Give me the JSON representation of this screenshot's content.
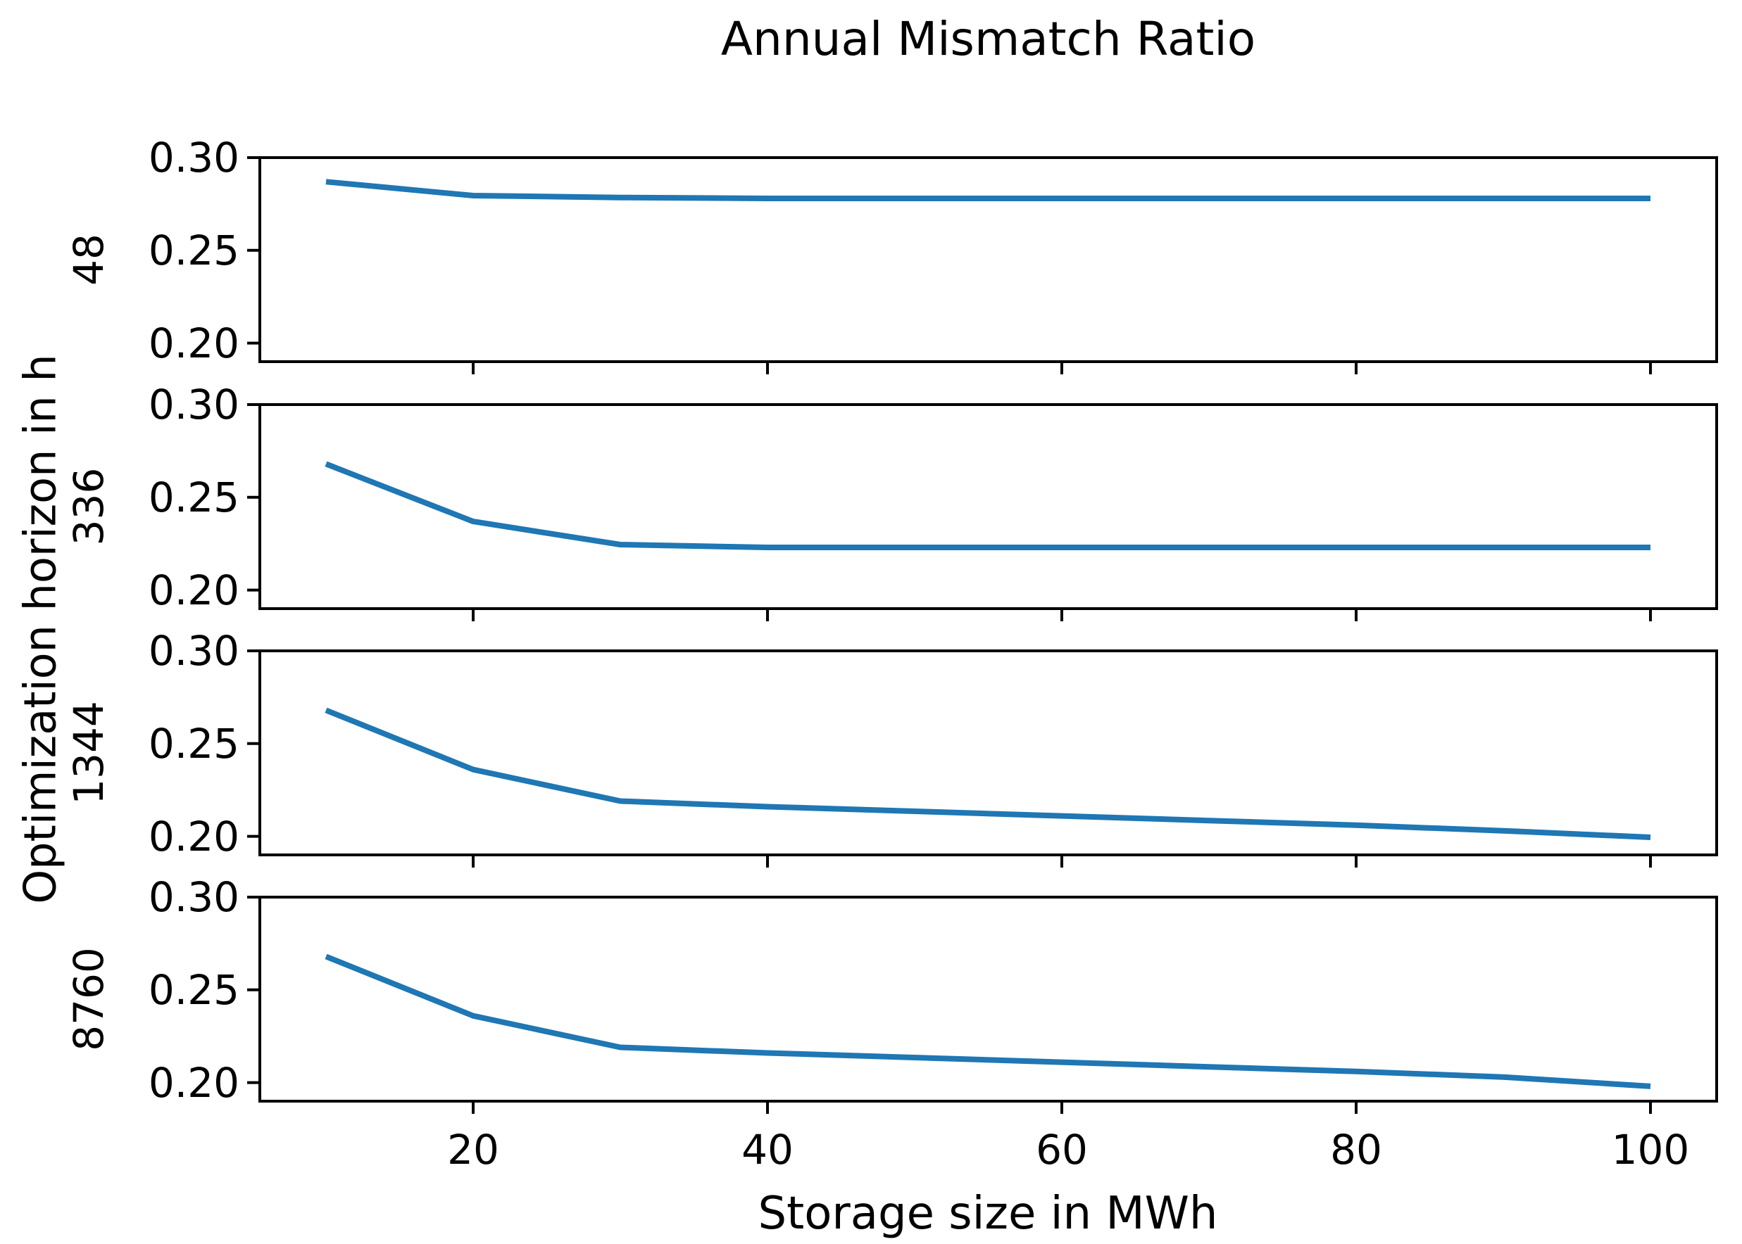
{
  "chart_data": {
    "type": "line",
    "title": "Annual Mismatch Ratio",
    "xlabel": "Storage size in MWh",
    "ylabel": "Optimization horizon in h",
    "grid": false,
    "legend": "none",
    "line_color": "#1f77b4",
    "axis_color": "#000000",
    "background_color": "#ffffff",
    "x": [
      10,
      20,
      30,
      40,
      50,
      60,
      70,
      80,
      90,
      100
    ],
    "xlim": [
      5.5,
      104.5
    ],
    "ylim": [
      0.19,
      0.3
    ],
    "x_ticks": [
      20,
      40,
      60,
      80,
      100
    ],
    "x_tick_labels": [
      "20",
      "40",
      "60",
      "80",
      "100"
    ],
    "y_ticks": [
      0.3,
      0.25,
      0.2
    ],
    "y_tick_labels": [
      "0.30",
      "0.25",
      "0.20"
    ],
    "subplots": [
      {
        "row_label": "48",
        "values": [
          0.287,
          0.2795,
          0.2785,
          0.278,
          0.278,
          0.278,
          0.278,
          0.278,
          0.278,
          0.278
        ]
      },
      {
        "row_label": "336",
        "values": [
          0.268,
          0.237,
          0.2245,
          0.223,
          0.223,
          0.223,
          0.223,
          0.223,
          0.223,
          0.223
        ]
      },
      {
        "row_label": "1344",
        "values": [
          0.268,
          0.236,
          0.219,
          0.216,
          0.2135,
          0.211,
          0.2085,
          0.206,
          0.203,
          0.1995
        ]
      },
      {
        "row_label": "8760",
        "values": [
          0.268,
          0.236,
          0.219,
          0.216,
          0.2135,
          0.211,
          0.2085,
          0.206,
          0.203,
          0.198
        ]
      }
    ]
  }
}
